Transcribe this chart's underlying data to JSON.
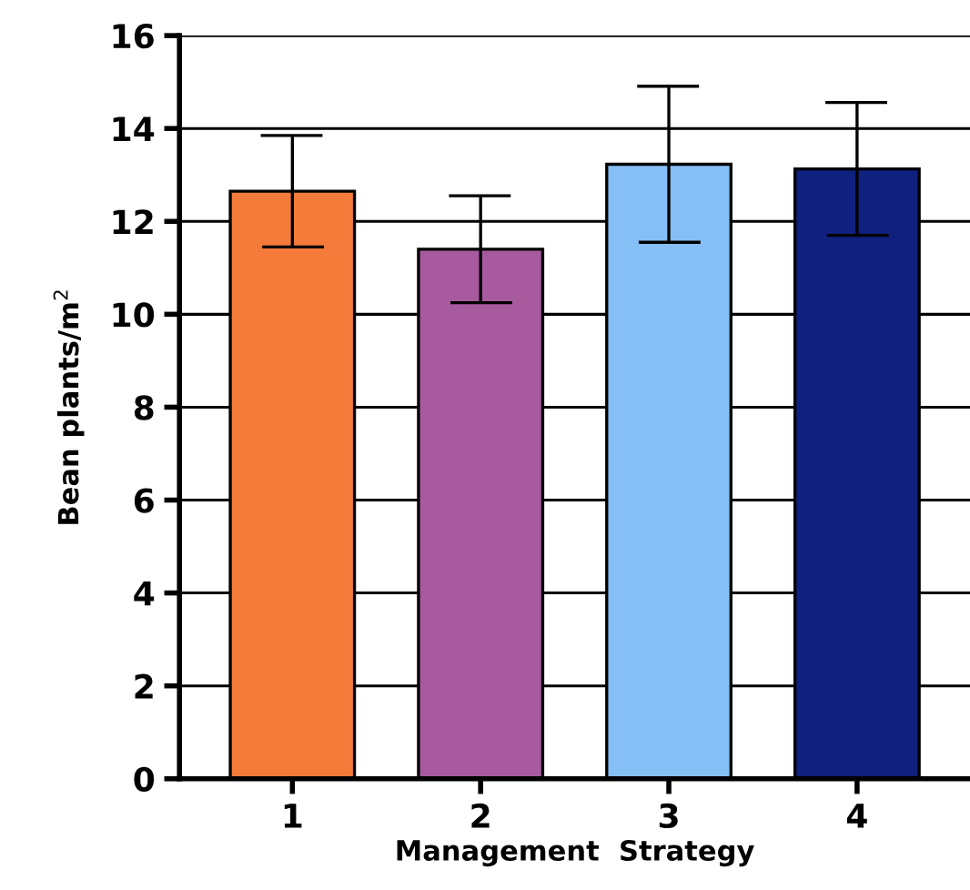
{
  "chart_data": {
    "type": "bar",
    "xlabel": "Management  Strategy",
    "ylabel": "Bean plants/m$^{2}$",
    "categories": [
      "1",
      "2",
      "3",
      "4"
    ],
    "values": [
      12.65,
      11.4,
      13.23,
      13.13
    ],
    "errors": [
      1.2,
      1.15,
      1.68,
      1.43
    ],
    "colors": [
      "#f47b3a",
      "#a85a9e",
      "#85bff5",
      "#10207e"
    ],
    "ylim": [
      0,
      16
    ],
    "yticks": [
      0,
      2,
      4,
      6,
      8,
      10,
      12,
      14,
      16
    ],
    "grid": "y"
  }
}
